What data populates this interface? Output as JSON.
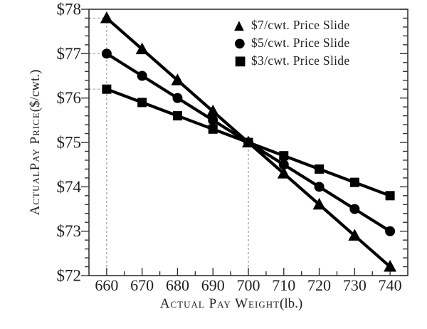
{
  "chart_data": {
    "type": "line",
    "title": "",
    "xlabel": "Actual Pay Weight(lb.)",
    "xlabel_main": "Actual Pay Weight",
    "xlabel_suffix": "(lb.)",
    "ylabel": "ActualPay Price($/cwt.)",
    "ylabel_main": "ActualPay Price",
    "ylabel_suffix": "($/cwt.)",
    "x": [
      660,
      670,
      680,
      690,
      700,
      710,
      720,
      730,
      740
    ],
    "xlim": [
      655,
      745
    ],
    "ylim": [
      72,
      78
    ],
    "x_tick_labels": [
      "660",
      "670",
      "680",
      "690",
      "700",
      "710",
      "720",
      "730",
      "740"
    ],
    "x_minor_ticks": [
      665,
      675,
      685,
      695,
      705,
      715,
      725,
      735
    ],
    "y_major_ticks": [
      72,
      73,
      74,
      75,
      76,
      77,
      78
    ],
    "y_tick_labels": [
      "$72",
      "$73",
      "$74",
      "$75",
      "$76",
      "$77",
      "$78"
    ],
    "y_minor_step": 0.2,
    "grid": false,
    "legend_position": "top-right",
    "series": [
      {
        "name": "$7/cwt. Price Slide",
        "marker": "triangle",
        "glyph": "▲",
        "values": [
          77.8,
          77.1,
          76.4,
          75.7,
          75.0,
          74.3,
          73.6,
          72.9,
          72.2
        ]
      },
      {
        "name": "$5/cwt. Price Slide",
        "marker": "circle",
        "glyph": "●",
        "values": [
          77.0,
          76.5,
          76.0,
          75.5,
          75.0,
          74.5,
          74.0,
          73.5,
          73.0
        ]
      },
      {
        "name": "$3/cwt. Price Slide",
        "marker": "square",
        "glyph": "■",
        "values": [
          76.2,
          75.9,
          75.6,
          75.3,
          75.0,
          74.7,
          74.4,
          74.1,
          73.8
        ]
      }
    ],
    "guides": {
      "vertical": [
        {
          "x": 660,
          "y_top": 77.8
        },
        {
          "x": 700,
          "y_top": 75.0
        }
      ],
      "horizontal": [
        {
          "y": 77.8,
          "x_right": 660
        },
        {
          "y": 77.0,
          "x_right": 660
        },
        {
          "y": 76.2,
          "x_right": 660
        }
      ]
    },
    "colors": {
      "series": "#000000",
      "axis": "#333333",
      "text": "#1f1f1f",
      "guide": "#9a9a9a",
      "background": "#ffffff"
    }
  }
}
